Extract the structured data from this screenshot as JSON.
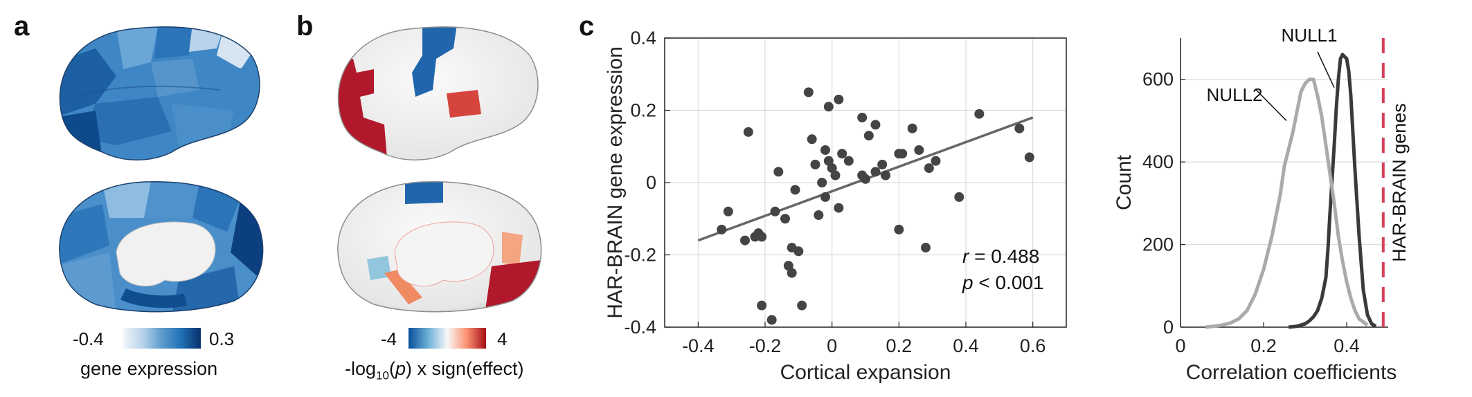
{
  "panel_a": {
    "letter": "a",
    "colorbar": {
      "min": "-0.4",
      "max": "0.3",
      "title": "gene expression",
      "gradient": [
        "#f2f6fb",
        "#b8d3ea",
        "#5b9bcc",
        "#2171b5",
        "#08306b"
      ]
    }
  },
  "panel_b": {
    "letter": "b",
    "colorbar": {
      "min": "-4",
      "max": "4",
      "title_prefix": "-log",
      "title_sub": "10",
      "title_mid": "(",
      "title_p": "p",
      "title_suffix": ") x sign(effect)",
      "gradient": [
        "#08519c",
        "#6baed6",
        "#f7f7f7",
        "#fc9272",
        "#a50f15"
      ]
    }
  },
  "panel_c": {
    "letter": "c",
    "stat_r_symbol": "r",
    "stat_r_value": " = 0.488",
    "stat_p_symbol": "p",
    "stat_p_value": " < 0.001"
  },
  "panel_d": {
    "null1_label": "NULL1",
    "null2_label": "NULL2",
    "har_label": "HAR-BRAIN genes"
  },
  "colors": {
    "points": "#444444",
    "fit_line": "#666666",
    "null1": "#3a3a3a",
    "null2": "#aaaaaa",
    "har_line": "#d6405a"
  },
  "chart_data": [
    {
      "type": "scatter",
      "title": "",
      "xlabel": "Cortical expansion",
      "ylabel": "HAR-BRAIN gene expression",
      "xlim": [
        -0.5,
        0.7
      ],
      "ylim": [
        -0.4,
        0.4
      ],
      "xticks": [
        -0.4,
        -0.2,
        0,
        0.2,
        0.4,
        0.6
      ],
      "xtick_labels": [
        "-0.4",
        "-0.2",
        "0",
        "0.2",
        "0.4",
        "0.6"
      ],
      "yticks": [
        -0.4,
        -0.2,
        0,
        0.2,
        0.4
      ],
      "ytick_labels": [
        "-0.4",
        "-0.2",
        "0",
        "0.2",
        "0.4"
      ],
      "grid": true,
      "points": [
        [
          -0.33,
          -0.13
        ],
        [
          -0.31,
          -0.08
        ],
        [
          -0.26,
          -0.16
        ],
        [
          -0.25,
          0.14
        ],
        [
          -0.23,
          -0.15
        ],
        [
          -0.22,
          -0.14
        ],
        [
          -0.21,
          -0.15
        ],
        [
          -0.21,
          -0.34
        ],
        [
          -0.18,
          -0.38
        ],
        [
          -0.17,
          -0.08
        ],
        [
          -0.16,
          0.03
        ],
        [
          -0.14,
          -0.1
        ],
        [
          -0.13,
          -0.23
        ],
        [
          -0.12,
          -0.18
        ],
        [
          -0.12,
          -0.25
        ],
        [
          -0.11,
          -0.02
        ],
        [
          -0.1,
          -0.19
        ],
        [
          -0.09,
          -0.34
        ],
        [
          -0.07,
          0.25
        ],
        [
          -0.06,
          0.12
        ],
        [
          -0.05,
          0.05
        ],
        [
          -0.04,
          -0.09
        ],
        [
          -0.03,
          0.0
        ],
        [
          -0.02,
          0.09
        ],
        [
          -0.02,
          -0.04
        ],
        [
          -0.01,
          0.06
        ],
        [
          -0.01,
          0.21
        ],
        [
          0.0,
          0.04
        ],
        [
          0.01,
          0.02
        ],
        [
          0.02,
          0.23
        ],
        [
          0.02,
          -0.07
        ],
        [
          0.03,
          0.08
        ],
        [
          0.05,
          0.06
        ],
        [
          0.09,
          0.18
        ],
        [
          0.09,
          0.02
        ],
        [
          0.1,
          0.01
        ],
        [
          0.11,
          0.13
        ],
        [
          0.13,
          0.03
        ],
        [
          0.13,
          0.16
        ],
        [
          0.15,
          0.05
        ],
        [
          0.16,
          0.02
        ],
        [
          0.2,
          0.08
        ],
        [
          0.2,
          -0.13
        ],
        [
          0.21,
          0.08
        ],
        [
          0.24,
          0.15
        ],
        [
          0.26,
          0.09
        ],
        [
          0.28,
          -0.18
        ],
        [
          0.29,
          0.04
        ],
        [
          0.31,
          0.06
        ],
        [
          0.38,
          -0.04
        ],
        [
          0.44,
          0.19
        ],
        [
          0.56,
          0.15
        ],
        [
          0.59,
          0.07
        ]
      ],
      "fit_line": {
        "x": [
          -0.4,
          0.6
        ],
        "y": [
          -0.16,
          0.18
        ]
      },
      "annotations": [
        "r = 0.488",
        "p < 0.001"
      ]
    },
    {
      "type": "line",
      "title": "",
      "xlabel": "Correlation coefficients",
      "ylabel": "Count",
      "xlim": [
        0,
        0.5
      ],
      "ylim": [
        0,
        700
      ],
      "xticks": [
        0,
        0.2,
        0.4
      ],
      "xtick_labels": [
        "0",
        "0.2",
        "0.4"
      ],
      "yticks": [
        0,
        200,
        400,
        600
      ],
      "ytick_labels": [
        "0",
        "200",
        "400",
        "600"
      ],
      "grid": true,
      "series": [
        {
          "name": "NULL1",
          "x": [
            0.26,
            0.28,
            0.3,
            0.31,
            0.32,
            0.33,
            0.34,
            0.35,
            0.355,
            0.36,
            0.365,
            0.37,
            0.375,
            0.38,
            0.385,
            0.39,
            0.395,
            0.4,
            0.405,
            0.41,
            0.415,
            0.42,
            0.43,
            0.44,
            0.45,
            0.46,
            0.47
          ],
          "y": [
            0,
            2,
            8,
            15,
            25,
            40,
            70,
            120,
            190,
            280,
            360,
            440,
            530,
            600,
            650,
            660,
            655,
            650,
            620,
            560,
            470,
            380,
            220,
            90,
            30,
            8,
            2
          ]
        },
        {
          "name": "NULL2",
          "x": [
            0.06,
            0.08,
            0.1,
            0.12,
            0.14,
            0.16,
            0.18,
            0.2,
            0.22,
            0.24,
            0.25,
            0.26,
            0.27,
            0.28,
            0.29,
            0.3,
            0.31,
            0.32,
            0.33,
            0.34,
            0.35,
            0.36,
            0.37,
            0.38,
            0.39,
            0.4,
            0.41,
            0.42,
            0.43,
            0.45
          ],
          "y": [
            0,
            2,
            5,
            10,
            20,
            40,
            80,
            140,
            220,
            320,
            390,
            430,
            470,
            520,
            570,
            590,
            600,
            600,
            560,
            510,
            440,
            370,
            300,
            220,
            160,
            110,
            70,
            40,
            20,
            5
          ]
        }
      ],
      "vline": {
        "x": 0.488,
        "label": "HAR-BRAIN genes"
      }
    }
  ]
}
